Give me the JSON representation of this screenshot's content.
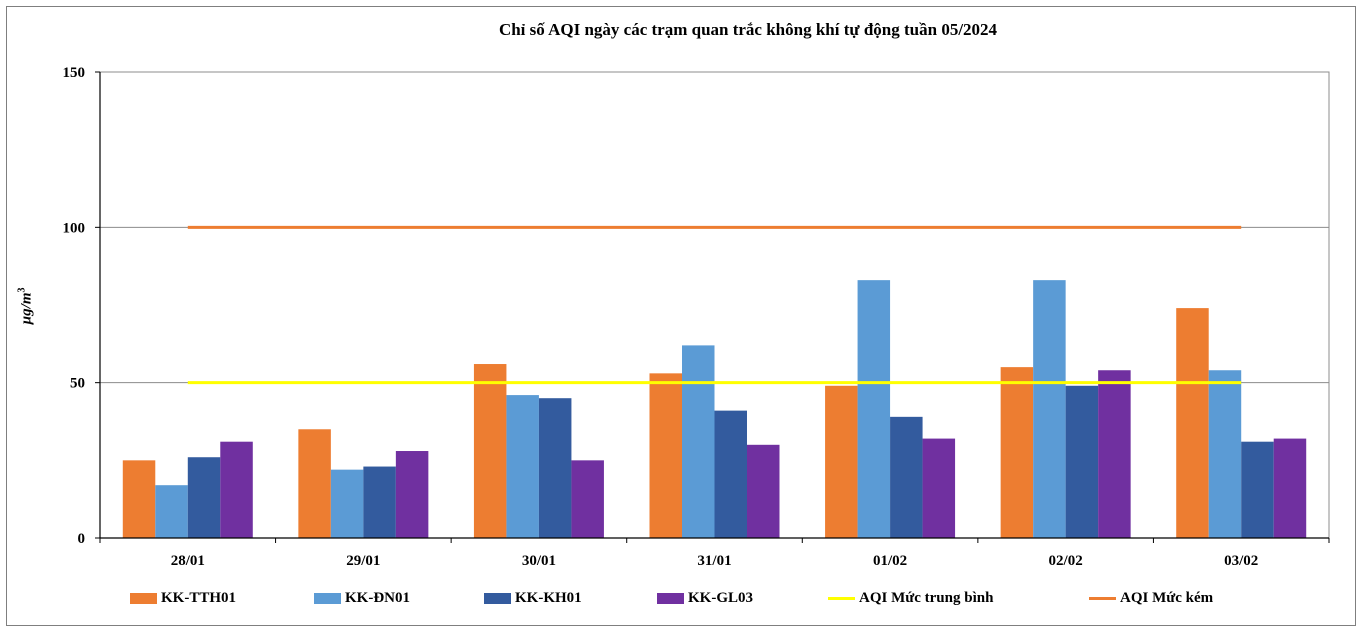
{
  "chart_data": {
    "type": "bar",
    "title": "Chỉ số AQI ngày các trạm quan trắc không khí tự động tuần 05/2024",
    "xlabel": "",
    "ylabel": "µg/m",
    "ylabel_sup": "3",
    "ylim": [
      0,
      150
    ],
    "yticks": [
      "0",
      "50",
      "100",
      "150"
    ],
    "grid": true,
    "legend_position": "bottom",
    "categories": [
      "28/01",
      "29/01",
      "30/01",
      "31/01",
      "01/02",
      "02/02",
      "03/02"
    ],
    "series": [
      {
        "name": "KK-TTH01",
        "color": "#ED7D31",
        "values": [
          25,
          35,
          56,
          53,
          49,
          55,
          74
        ]
      },
      {
        "name": "KK-ĐN01",
        "color": "#5B9BD5",
        "values": [
          17,
          22,
          46,
          62,
          83,
          83,
          54
        ]
      },
      {
        "name": "KK-KH01",
        "color": "#335B9E",
        "values": [
          26,
          23,
          45,
          41,
          39,
          49,
          31
        ]
      },
      {
        "name": "KK-GL03",
        "color": "#7030A0",
        "values": [
          31,
          28,
          25,
          30,
          32,
          54,
          32
        ]
      }
    ],
    "reference_lines": [
      {
        "name": "AQI Mức trung bình",
        "color": "#FFFF00",
        "value": 50
      },
      {
        "name": "AQI Mức kém",
        "color": "#ED7D31",
        "value": 100
      }
    ]
  }
}
